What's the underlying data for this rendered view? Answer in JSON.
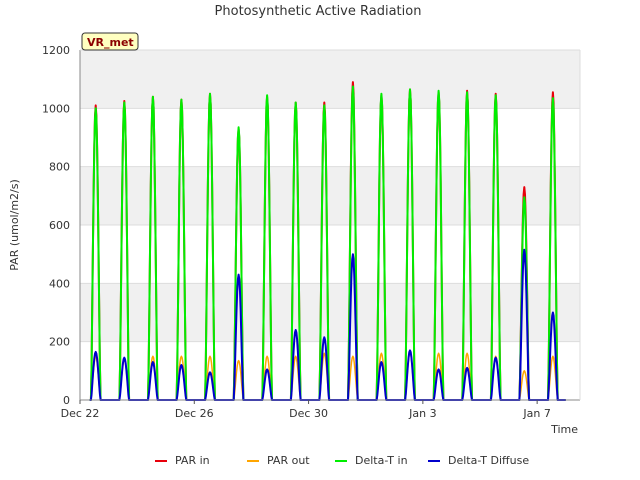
{
  "chart_data": {
    "type": "line",
    "title": "Photosynthetic Active Radiation",
    "xlabel": "Time",
    "ylabel": "PAR (umol/m2/s)",
    "ylim": [
      0,
      1200
    ],
    "xlim": [
      0,
      17.5
    ],
    "x_unit": "days since Dec 22 00:00",
    "yticks": [
      0,
      200,
      400,
      600,
      800,
      1000,
      1200
    ],
    "xticks": [
      {
        "value": 0,
        "label": "Dec 22"
      },
      {
        "value": 4,
        "label": "Dec 26"
      },
      {
        "value": 8,
        "label": "Dec 30"
      },
      {
        "value": 12,
        "label": "Jan 3"
      },
      {
        "value": 16,
        "label": "Jan 7"
      }
    ],
    "grid": true,
    "legend_position": "bottom",
    "annotation": "VR_met",
    "daily_peaks": {
      "day_index": [
        0,
        1,
        2,
        3,
        4,
        5,
        6,
        7,
        8,
        9,
        10,
        11,
        12,
        13,
        14,
        15,
        16
      ],
      "par_in": [
        1010,
        1025,
        1040,
        1030,
        1050,
        930,
        1040,
        1020,
        1020,
        1090,
        1045,
        1065,
        1055,
        1060,
        1050,
        730,
        1055
      ],
      "par_out": [
        150,
        140,
        150,
        150,
        150,
        135,
        150,
        150,
        160,
        150,
        160,
        165,
        160,
        160,
        150,
        100,
        150
      ],
      "delta_t_in": [
        1000,
        1020,
        1040,
        1030,
        1050,
        935,
        1045,
        1020,
        1010,
        1075,
        1050,
        1065,
        1060,
        1055,
        1045,
        695,
        1035
      ],
      "delta_t_diffuse": [
        165,
        145,
        130,
        120,
        95,
        430,
        105,
        240,
        215,
        500,
        130,
        170,
        105,
        110,
        145,
        515,
        300
      ]
    },
    "series": [
      {
        "name": "PAR in",
        "color": "#e8000b"
      },
      {
        "name": "PAR out",
        "color": "#ffa500"
      },
      {
        "name": "Delta-T in",
        "color": "#00ee00"
      },
      {
        "name": "Delta-T Diffuse",
        "color": "#0000cc"
      }
    ]
  }
}
